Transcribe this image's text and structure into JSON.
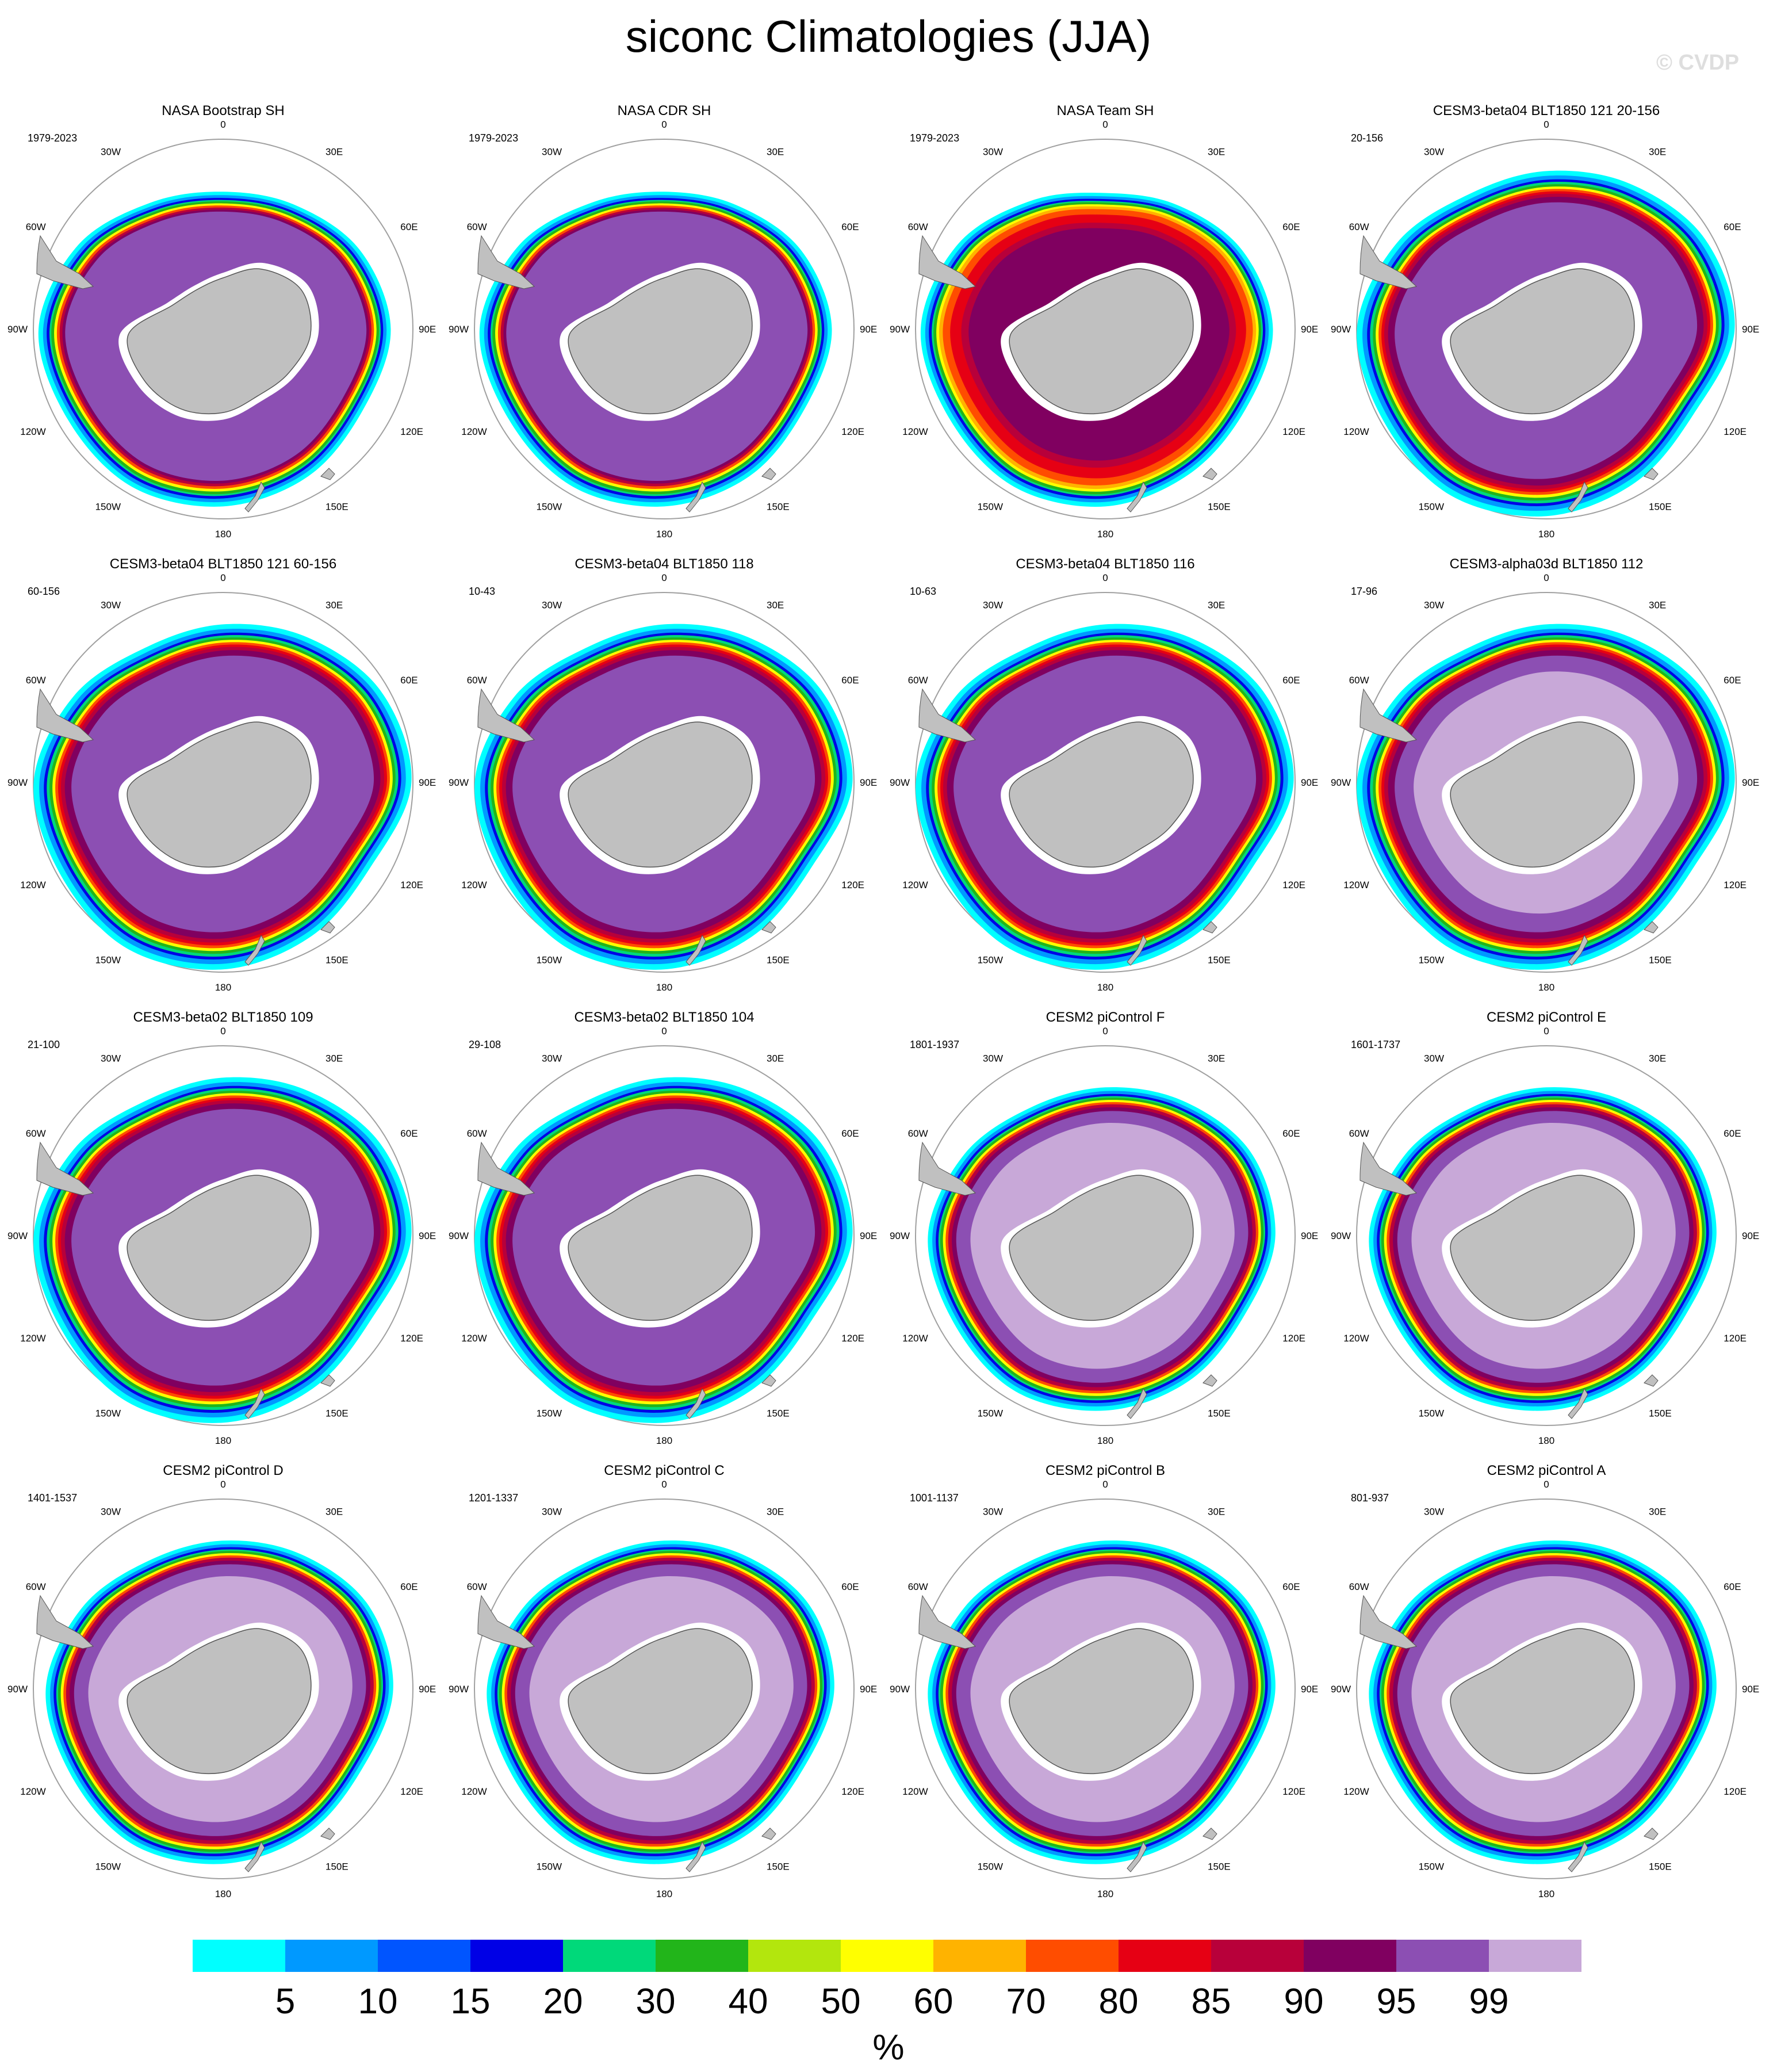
{
  "title": "siconc Climatologies (JJA)",
  "watermark": "© CVDP",
  "lon_labels": [
    "0",
    "30E",
    "60E",
    "90E",
    "120E",
    "150E",
    "180",
    "150W",
    "120W",
    "90W",
    "60W",
    "30W"
  ],
  "colors": {
    "land": "#c0c0c0",
    "land_edge": "#555555",
    "circle": "#a0a0a0",
    "palette": [
      "#00ffff",
      "#0099ff",
      "#0055ff",
      "#0000e6",
      "#00d97a",
      "#22b51a",
      "#b3e60d",
      "#ffff00",
      "#ffb300",
      "#ff4d00",
      "#e60014",
      "#b8003a",
      "#800060",
      "#8c4fb3",
      "#c8a8d8"
    ]
  },
  "colorbar": {
    "tick_labels": [
      "5",
      "10",
      "15",
      "20",
      "30",
      "40",
      "50",
      "60",
      "70",
      "80",
      "85",
      "90",
      "95",
      "99"
    ],
    "unit": "%"
  },
  "chart_data": [
    {
      "type": "heatmap",
      "title": "NASA Bootstrap SH",
      "period": "1979-2023",
      "style": "obs"
    },
    {
      "type": "heatmap",
      "title": "NASA CDR SH",
      "period": "1979-2023",
      "style": "obs"
    },
    {
      "type": "heatmap",
      "title": "NASA Team SH",
      "period": "1979-2023",
      "style": "team"
    },
    {
      "type": "heatmap",
      "title": "CESM3-beta04 BLT1850 121 20-156",
      "period": "20-156",
      "style": "model_big"
    },
    {
      "type": "heatmap",
      "title": "CESM3-beta04 BLT1850 121 60-156",
      "period": "60-156",
      "style": "model_big"
    },
    {
      "type": "heatmap",
      "title": "CESM3-beta04 BLT1850 118",
      "period": "10-43",
      "style": "model_big"
    },
    {
      "type": "heatmap",
      "title": "CESM3-beta04 BLT1850 116",
      "period": "10-63",
      "style": "model_big"
    },
    {
      "type": "heatmap",
      "title": "CESM3-alpha03d BLT1850 112",
      "period": "17-96",
      "style": "model_light"
    },
    {
      "type": "heatmap",
      "title": "CESM3-beta02 BLT1850 109",
      "period": "21-100",
      "style": "model_big"
    },
    {
      "type": "heatmap",
      "title": "CESM3-beta02 BLT1850 104",
      "period": "29-108",
      "style": "model_big"
    },
    {
      "type": "heatmap",
      "title": "CESM2 piControl F",
      "period": "1801-1937",
      "style": "cesm2"
    },
    {
      "type": "heatmap",
      "title": "CESM2 piControl E",
      "period": "1601-1737",
      "style": "cesm2"
    },
    {
      "type": "heatmap",
      "title": "CESM2 piControl D",
      "period": "1401-1537",
      "style": "cesm2"
    },
    {
      "type": "heatmap",
      "title": "CESM2 piControl C",
      "period": "1201-1337",
      "style": "cesm2"
    },
    {
      "type": "heatmap",
      "title": "CESM2 piControl B",
      "period": "1001-1137",
      "style": "cesm2"
    },
    {
      "type": "heatmap",
      "title": "CESM2 piControl A",
      "period": "801-937",
      "style": "cesm2"
    }
  ]
}
